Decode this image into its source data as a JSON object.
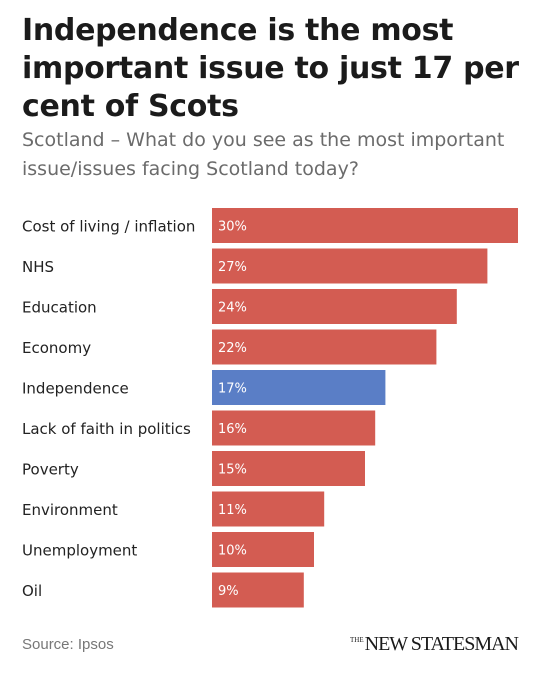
{
  "header": {
    "title": "Independence is the most important issue to just 17 per cent of Scots",
    "subtitle": "Scotland – What do you see as the most important issue/issues facing Scotland today?"
  },
  "footer": {
    "source": "Source: Ipsos",
    "brand_prefix": "THE",
    "brand_name": "NEW STATESMAN"
  },
  "colors": {
    "default_bar": "#d35c52",
    "highlight_bar": "#5a7ec6",
    "bar_label": "#ffffff",
    "category_text": "#222222"
  },
  "chart_data": {
    "type": "bar",
    "orientation": "horizontal",
    "categories": [
      "Cost of living / inflation",
      "NHS",
      "Education",
      "Economy",
      "Independence",
      "Lack of faith in politics",
      "Poverty",
      "Environment",
      "Unemployment",
      "Oil"
    ],
    "values": [
      30,
      27,
      24,
      22,
      17,
      16,
      15,
      11,
      10,
      9
    ],
    "value_labels": [
      "30%",
      "27%",
      "24%",
      "22%",
      "17%",
      "16%",
      "15%",
      "11%",
      "10%",
      "9%"
    ],
    "highlight": "Independence",
    "unit": "%",
    "xlim": [
      0,
      30
    ],
    "grid": false,
    "legend": "none"
  }
}
